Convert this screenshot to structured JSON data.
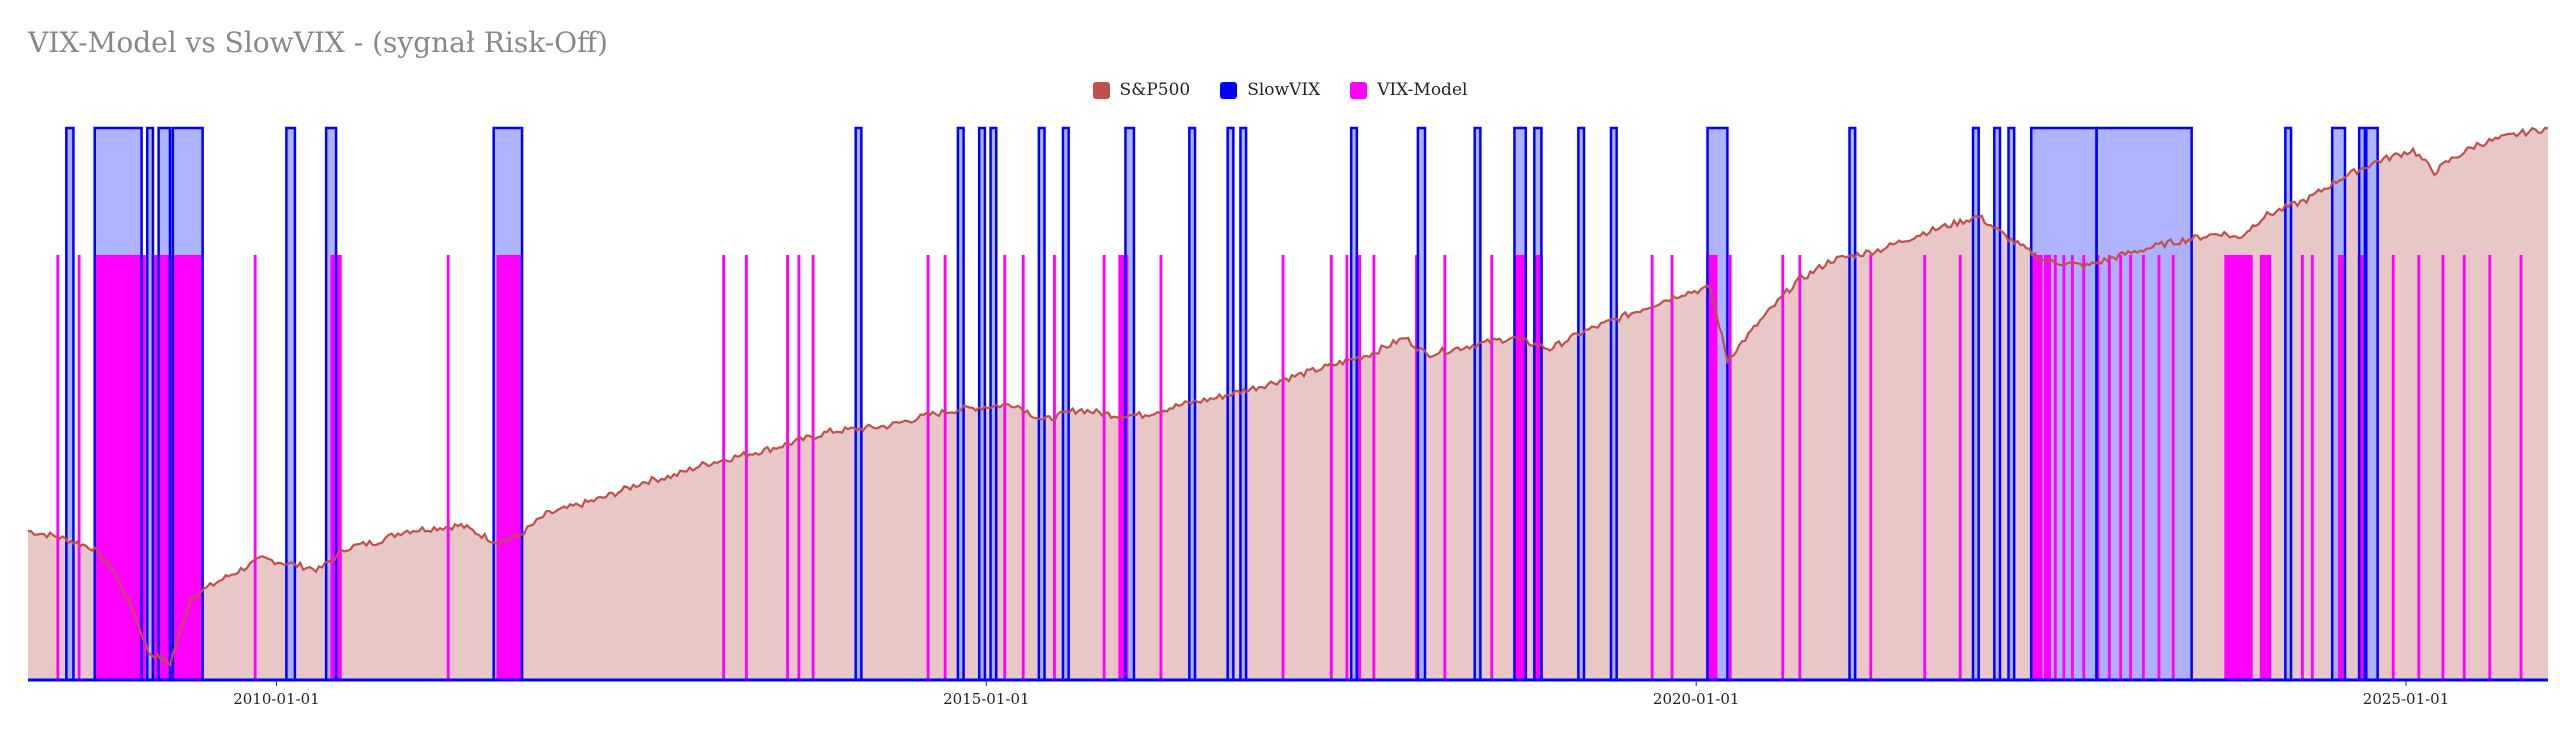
{
  "chart_data": {
    "type": "area",
    "title": "VIX-Model vs SlowVIX - (sygnał Risk-Off)",
    "xlabel": "",
    "ylabel": "",
    "x_ticks": [
      {
        "label": "2010-01-01",
        "x": 2010.0
      },
      {
        "label": "2015-01-01",
        "x": 2015.0
      },
      {
        "label": "2020-01-01",
        "x": 2020.0
      },
      {
        "label": "2025-01-01",
        "x": 2025.0
      }
    ],
    "xlim": [
      2008.25,
      2026.0
    ],
    "ylim": [
      0,
      1.0
    ],
    "colors": {
      "sp500_line": "#c0504d",
      "sp500_fill": "#e8c8c6",
      "slowvix": "#0000ff",
      "slowvix_fill": "#aab0ff",
      "vixmodel": "#ff00ff",
      "axis": "#0000ff"
    },
    "series": [
      {
        "name": "S&P500",
        "type": "area",
        "x": [
          2008.25,
          2008.45,
          2008.7,
          2008.85,
          2009.0,
          2009.1,
          2009.25,
          2009.4,
          2009.6,
          2009.9,
          2010.1,
          2010.3,
          2010.5,
          2010.7,
          2010.9,
          2011.3,
          2011.55,
          2011.7,
          2011.9,
          2012.3,
          2012.6,
          2012.8,
          2013.0,
          2013.5,
          2013.9,
          2014.3,
          2014.6,
          2014.8,
          2015.2,
          2015.4,
          2015.65,
          2015.9,
          2016.1,
          2016.4,
          2016.6,
          2016.9,
          2017.3,
          2017.7,
          2017.95,
          2018.1,
          2018.3,
          2018.7,
          2018.97,
          2019.2,
          2019.5,
          2019.9,
          2020.1,
          2020.22,
          2020.45,
          2020.7,
          2020.95,
          2021.3,
          2021.6,
          2021.99,
          2022.2,
          2022.45,
          2022.75,
          2023.0,
          2023.3,
          2023.7,
          2023.82,
          2024.0,
          2024.3,
          2024.55,
          2024.8,
          2025.05,
          2025.2,
          2025.3,
          2025.5,
          2025.8,
          2026.0
        ],
        "values": [
          0.27,
          0.26,
          0.24,
          0.2,
          0.12,
          0.05,
          0.03,
          0.15,
          0.18,
          0.22,
          0.21,
          0.2,
          0.24,
          0.25,
          0.27,
          0.28,
          0.25,
          0.26,
          0.3,
          0.33,
          0.36,
          0.37,
          0.39,
          0.42,
          0.45,
          0.46,
          0.48,
          0.49,
          0.5,
          0.47,
          0.49,
          0.48,
          0.48,
          0.5,
          0.51,
          0.53,
          0.56,
          0.59,
          0.62,
          0.59,
          0.6,
          0.62,
          0.6,
          0.63,
          0.66,
          0.7,
          0.71,
          0.58,
          0.65,
          0.72,
          0.76,
          0.78,
          0.81,
          0.84,
          0.8,
          0.76,
          0.75,
          0.77,
          0.79,
          0.81,
          0.8,
          0.84,
          0.87,
          0.91,
          0.94,
          0.96,
          0.92,
          0.94,
          0.97,
          0.99,
          1.0
        ]
      },
      {
        "name": "SlowVIX",
        "type": "binary-spans",
        "level": 1.0,
        "spans": [
          [
            2008.52,
            2008.57
          ],
          [
            2008.72,
            2009.05
          ],
          [
            2009.09,
            2009.13
          ],
          [
            2009.17,
            2009.25
          ],
          [
            2009.27,
            2009.48
          ],
          [
            2010.07,
            2010.13
          ],
          [
            2010.35,
            2010.42
          ],
          [
            2011.53,
            2011.73
          ],
          [
            2014.08,
            2014.12
          ],
          [
            2014.8,
            2014.84
          ],
          [
            2014.95,
            2014.99
          ],
          [
            2015.03,
            2015.07
          ],
          [
            2015.37,
            2015.41
          ],
          [
            2015.54,
            2015.58
          ],
          [
            2015.98,
            2016.04
          ],
          [
            2016.43,
            2016.47
          ],
          [
            2016.7,
            2016.74
          ],
          [
            2016.79,
            2016.83
          ],
          [
            2017.57,
            2017.61
          ],
          [
            2018.04,
            2018.09
          ],
          [
            2018.44,
            2018.48
          ],
          [
            2018.72,
            2018.8
          ],
          [
            2018.86,
            2018.91
          ],
          [
            2019.17,
            2019.21
          ],
          [
            2019.4,
            2019.44
          ],
          [
            2020.08,
            2020.22
          ],
          [
            2021.08,
            2021.12
          ],
          [
            2021.95,
            2021.99
          ],
          [
            2022.1,
            2022.14
          ],
          [
            2022.2,
            2022.24
          ],
          [
            2022.36,
            2022.82
          ],
          [
            2022.82,
            2023.49
          ],
          [
            2024.15,
            2024.19
          ],
          [
            2024.48,
            2024.57
          ],
          [
            2024.67,
            2024.71
          ],
          [
            2024.72,
            2024.8
          ]
        ]
      },
      {
        "name": "VIX-Model",
        "type": "binary-spans",
        "level": 0.77,
        "spans": [
          [
            2008.45,
            2008.47
          ],
          [
            2008.6,
            2008.62
          ],
          [
            2008.72,
            2009.08
          ],
          [
            2009.12,
            2009.48
          ],
          [
            2009.84,
            2009.86
          ],
          [
            2010.38,
            2010.46
          ],
          [
            2011.2,
            2011.22
          ],
          [
            2011.55,
            2011.73
          ],
          [
            2013.14,
            2013.16
          ],
          [
            2013.3,
            2013.32
          ],
          [
            2013.59,
            2013.61
          ],
          [
            2013.67,
            2013.69
          ],
          [
            2013.77,
            2013.79
          ],
          [
            2014.58,
            2014.6
          ],
          [
            2014.7,
            2014.72
          ],
          [
            2015.12,
            2015.14
          ],
          [
            2015.25,
            2015.27
          ],
          [
            2015.47,
            2015.49
          ],
          [
            2015.82,
            2015.84
          ],
          [
            2015.93,
            2016.0
          ],
          [
            2016.22,
            2016.24
          ],
          [
            2017.08,
            2017.1
          ],
          [
            2017.42,
            2017.44
          ],
          [
            2017.53,
            2017.55
          ],
          [
            2017.6,
            2017.64
          ],
          [
            2017.72,
            2017.74
          ],
          [
            2018.02,
            2018.04
          ],
          [
            2018.22,
            2018.24
          ],
          [
            2018.55,
            2018.57
          ],
          [
            2018.72,
            2018.8
          ],
          [
            2018.86,
            2018.92
          ],
          [
            2019.68,
            2019.7
          ],
          [
            2019.82,
            2019.84
          ],
          [
            2020.07,
            2020.15
          ],
          [
            2020.23,
            2020.25
          ],
          [
            2020.6,
            2020.62
          ],
          [
            2020.72,
            2020.74
          ],
          [
            2021.22,
            2021.24
          ],
          [
            2021.6,
            2021.62
          ],
          [
            2021.85,
            2021.87
          ],
          [
            2022.36,
            2022.44
          ],
          [
            2022.45,
            2022.5
          ],
          [
            2022.52,
            2022.54
          ],
          [
            2022.58,
            2022.6
          ],
          [
            2022.64,
            2022.66
          ],
          [
            2022.72,
            2022.74
          ],
          [
            2022.82,
            2022.84
          ],
          [
            2022.9,
            2022.92
          ],
          [
            2022.98,
            2023.0
          ],
          [
            2023.05,
            2023.07
          ],
          [
            2023.14,
            2023.16
          ],
          [
            2023.25,
            2023.27
          ],
          [
            2023.35,
            2023.37
          ],
          [
            2023.72,
            2023.92
          ],
          [
            2023.97,
            2024.05
          ],
          [
            2024.26,
            2024.28
          ],
          [
            2024.33,
            2024.35
          ],
          [
            2024.52,
            2024.56
          ],
          [
            2024.66,
            2024.72
          ],
          [
            2024.9,
            2024.92
          ],
          [
            2025.08,
            2025.1
          ],
          [
            2025.25,
            2025.27
          ],
          [
            2025.4,
            2025.42
          ],
          [
            2025.58,
            2025.6
          ],
          [
            2025.8,
            2025.82
          ]
        ]
      }
    ],
    "legend": [
      {
        "label": "S&P500",
        "color": "#c0504d"
      },
      {
        "label": "SlowVIX",
        "color": "#0000ff"
      },
      {
        "label": "VIX-Model",
        "color": "#ff00ff"
      }
    ]
  }
}
